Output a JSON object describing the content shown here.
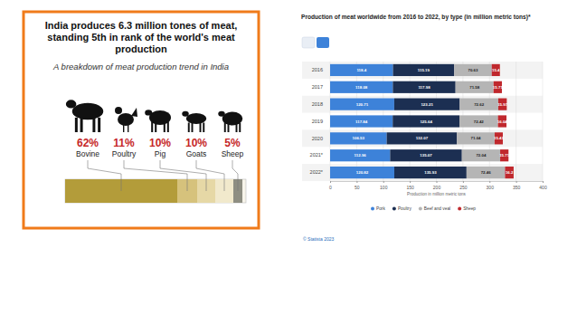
{
  "chart_data": [
    {
      "type": "bar",
      "orientation": "horizontal",
      "stacked": true,
      "title": "India produces 6.3 million tones of meat, standing 5th in rank of the world's meat production",
      "subtitle": "A breakdown of meat production trend in India",
      "categories": [
        "Bovine",
        "Poultry",
        "Pig",
        "Goats",
        "Sheep"
      ],
      "values": [
        62,
        11,
        10,
        10,
        5
      ],
      "value_labels": [
        "62%",
        "11%",
        "10%",
        "10%",
        "5%"
      ],
      "colors": [
        "#b39c3a",
        "#d6c27c",
        "#e6d8a6",
        "#f1e9cc",
        "#8e8e82"
      ],
      "xlim": [
        0,
        100
      ],
      "tick_labels": false,
      "data_labels": true
    },
    {
      "type": "bar",
      "orientation": "horizontal",
      "stacked": true,
      "title": "Production of meat worldwide from 2016 to 2022, by type (in million metric tons)*",
      "categories": [
        "2016",
        "2017",
        "2018",
        "2019",
        "2020",
        "2021*",
        "2022*"
      ],
      "series": [
        {
          "name": "Pork",
          "color": "#3d82d9",
          "values": [
            118.4,
            118.08,
            120.71,
            117.84,
            106.53,
            112.96,
            120.82
          ]
        },
        {
          "name": "Poultry",
          "color": "#1c2f52",
          "values": [
            115.19,
            117.98,
            123.21,
            125.64,
            132.07,
            135.07,
            135.93
          ]
        },
        {
          "name": "Beef and veal",
          "color": "#b5b5b5",
          "values": [
            70.63,
            71.58,
            72.62,
            72.42,
            71.04,
            72.04,
            72.46
          ]
        },
        {
          "name": "Sheep",
          "color": "#c0282d",
          "values": [
            15.4,
            15.71,
            15.97,
            16.04,
            15.43,
            15.71,
            16.2
          ]
        }
      ],
      "xlim": [
        0,
        400
      ],
      "xticks": [
        0,
        50,
        100,
        150,
        200,
        250,
        300,
        350,
        400
      ],
      "xlabel": "Production in million metric tons",
      "grid": true,
      "legend": "bottom",
      "data_labels": true,
      "annotations": [
        "© Statista 2023"
      ]
    }
  ]
}
